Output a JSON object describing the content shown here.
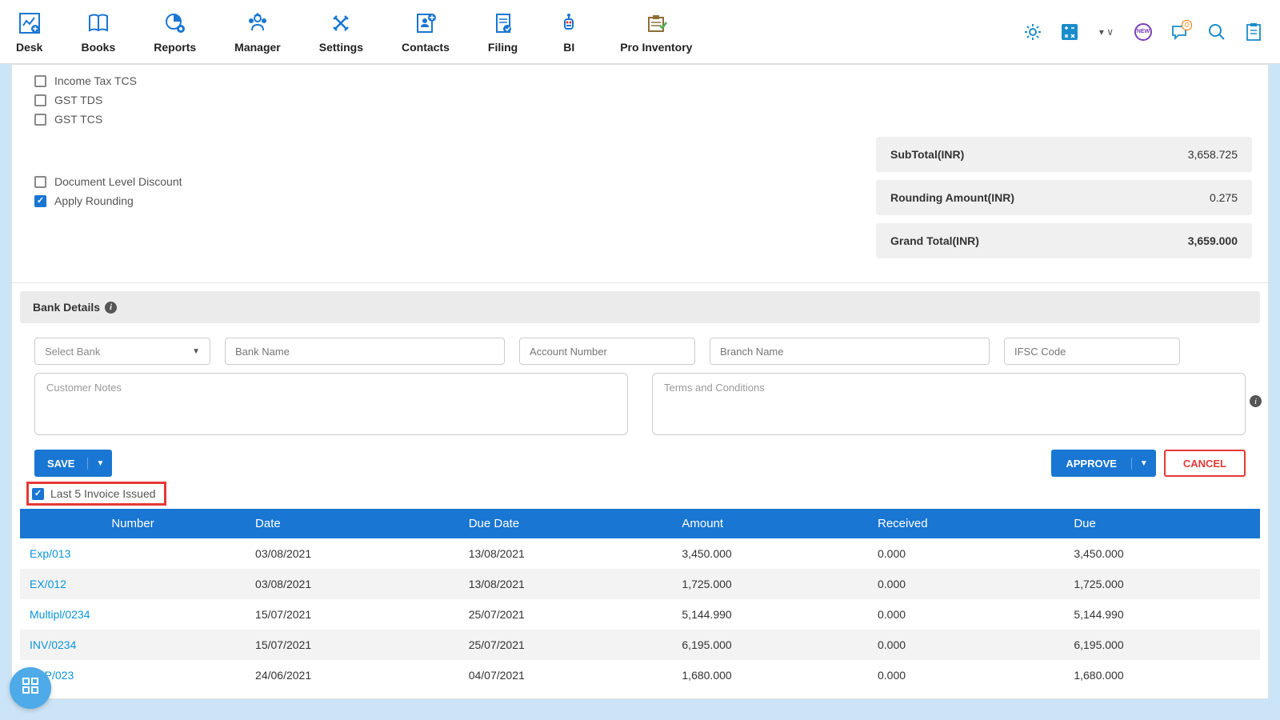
{
  "nav": {
    "items": [
      {
        "label": "Desk"
      },
      {
        "label": "Books"
      },
      {
        "label": "Reports"
      },
      {
        "label": "Manager"
      },
      {
        "label": "Settings"
      },
      {
        "label": "Contacts"
      },
      {
        "label": "Filing"
      },
      {
        "label": "BI"
      },
      {
        "label": "Pro Inventory"
      }
    ],
    "msg_count": "0"
  },
  "checkboxes": {
    "income_tax_tcs": "Income Tax TCS",
    "gst_tds": "GST TDS",
    "gst_tcs": "GST TCS",
    "doc_discount": "Document Level Discount",
    "apply_rounding": "Apply Rounding"
  },
  "totals": {
    "subtotal_label": "SubTotal(INR)",
    "subtotal_val": "3,658.725",
    "rounding_label": "Rounding Amount(INR)",
    "rounding_val": "0.275",
    "grand_label": "Grand Total(INR)",
    "grand_val": "3,659.000"
  },
  "bank": {
    "header": "Bank Details",
    "select_placeholder": "Select Bank",
    "bank_name_ph": "Bank Name",
    "account_ph": "Account Number",
    "branch_ph": "Branch Name",
    "ifsc_ph": "IFSC Code",
    "notes_ph": "Customer Notes",
    "terms_ph": "Terms and Conditions"
  },
  "actions": {
    "save": "SAVE",
    "approve": "APPROVE",
    "cancel": "CANCEL"
  },
  "last5": {
    "label": "Last 5 Invoice Issued"
  },
  "table": {
    "header_bg": "#1976d2",
    "cols": [
      "Number",
      "Date",
      "Due Date",
      "Amount",
      "Received",
      "Due"
    ],
    "rows": [
      {
        "num": "Exp/013",
        "date": "03/08/2021",
        "due": "13/08/2021",
        "amt": "3,450.000",
        "rec": "0.000",
        "duev": "3,450.000"
      },
      {
        "num": "EX/012",
        "date": "03/08/2021",
        "due": "13/08/2021",
        "amt": "1,725.000",
        "rec": "0.000",
        "duev": "1,725.000"
      },
      {
        "num": "Multipl/0234",
        "date": "15/07/2021",
        "due": "25/07/2021",
        "amt": "5,144.990",
        "rec": "0.000",
        "duev": "5,144.990"
      },
      {
        "num": "INV/0234",
        "date": "15/07/2021",
        "due": "25/07/2021",
        "amt": "6,195.000",
        "rec": "0.000",
        "duev": "6,195.000"
      },
      {
        "num": "EXP/023",
        "date": "24/06/2021",
        "due": "04/07/2021",
        "amt": "1,680.000",
        "rec": "0.000",
        "duev": "1,680.000"
      }
    ]
  }
}
